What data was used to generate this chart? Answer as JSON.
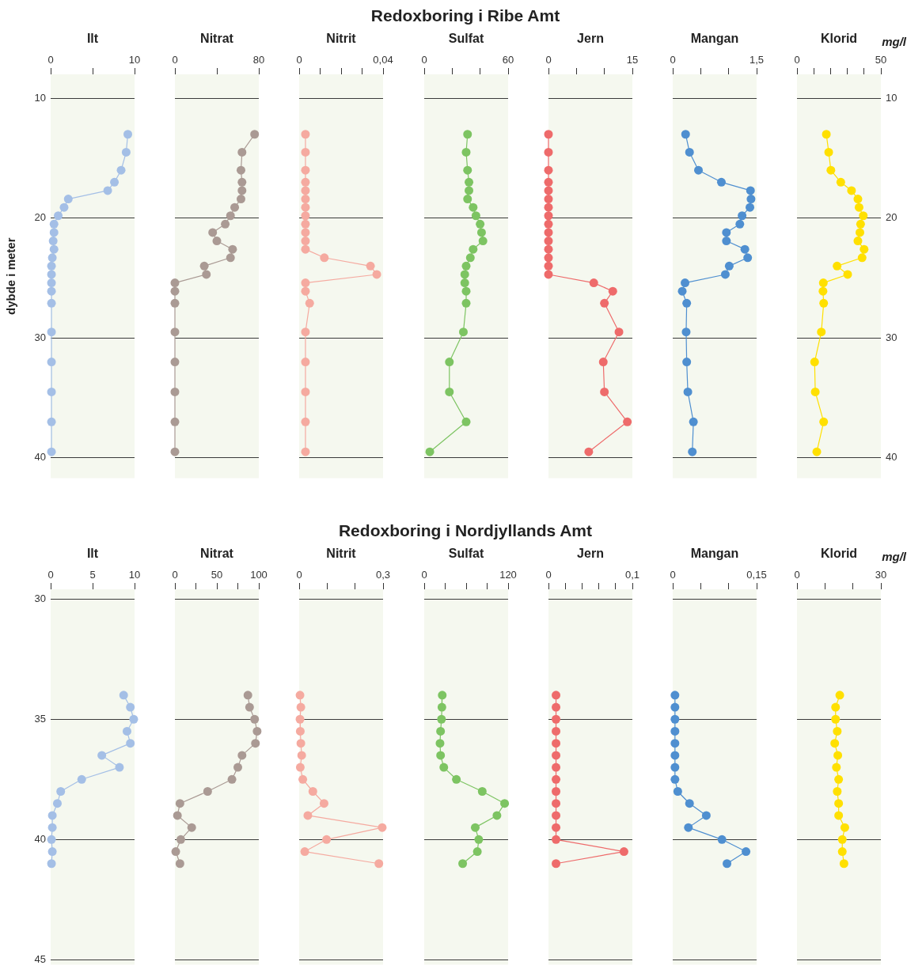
{
  "chart_data": [
    {
      "type": "other",
      "title": "Redoxboring i Ribe Amt"
    },
    {
      "type": "line",
      "xlabel": "Ilt",
      "ylabel": "dybde i meter",
      "grid": "y",
      "marker": "circle",
      "line_style": "solid",
      "xlim": [
        0,
        10
      ],
      "xticks": [
        0,
        {
          "value": 5,
          "label": null
        },
        10
      ],
      "ylim": [
        41.7,
        8
      ],
      "yticks": [
        10,
        20,
        30,
        40
      ],
      "series": [
        {
          "color": "#a4bfe6",
          "x": [
            9.2,
            9.0,
            8.4,
            7.6,
            6.8,
            2.1,
            1.6,
            0.9,
            0.4,
            0.4,
            0.3,
            0.4,
            0.2,
            0.1,
            0.1,
            0.1,
            0.1,
            0.1,
            0.1,
            0.1,
            0.1,
            0.1,
            0.1
          ],
          "values": [
            13.0,
            14.5,
            16.0,
            17.0,
            17.7,
            18.4,
            19.1,
            19.8,
            20.5,
            21.2,
            21.9,
            22.6,
            23.3,
            24.0,
            24.7,
            25.4,
            26.1,
            27.1,
            29.5,
            32.0,
            34.5,
            37.0,
            39.5
          ]
        }
      ]
    },
    {
      "type": "line",
      "xlabel": "Nitrat",
      "grid": "y",
      "marker": "circle",
      "line_style": "solid",
      "tick_labels": "x",
      "xlim": [
        0,
        80
      ],
      "xticks": [
        0,
        {
          "value": 40,
          "label": null
        },
        80
      ],
      "ylim": [
        41.7,
        8
      ],
      "yticks": [
        10,
        20,
        30,
        40
      ],
      "series": [
        {
          "color": "#aa9a94",
          "x": [
            76,
            64,
            63,
            64,
            64,
            63,
            57,
            53,
            48,
            36,
            40,
            55,
            53,
            28,
            30,
            0,
            0,
            0,
            0,
            0,
            0,
            0,
            0
          ],
          "values": [
            13.0,
            14.5,
            16.0,
            17.0,
            17.7,
            18.4,
            19.1,
            19.8,
            20.5,
            21.2,
            21.9,
            22.6,
            23.3,
            24.0,
            24.7,
            25.4,
            26.1,
            27.1,
            29.5,
            32.0,
            34.5,
            37.0,
            39.5
          ]
        }
      ]
    },
    {
      "type": "line",
      "xlabel": "Nitrit",
      "grid": "y",
      "marker": "circle",
      "line_style": "solid",
      "tick_labels": "x",
      "xlim": [
        0,
        0.04
      ],
      "xticks": [
        0,
        {
          "value": 0.01,
          "label": null
        },
        {
          "value": 0.02,
          "label": null
        },
        {
          "value": 0.03,
          "label": null
        },
        {
          "value": 0.04,
          "label": "0,04"
        }
      ],
      "ylim": [
        41.7,
        8
      ],
      "yticks": [
        10,
        20,
        30,
        40
      ],
      "series": [
        {
          "color": "#f5aaa0",
          "x": [
            0.003,
            0.003,
            0.003,
            0.003,
            0.003,
            0.003,
            0.003,
            0.003,
            0.003,
            0.003,
            0.003,
            0.003,
            0.012,
            0.034,
            0.037,
            0.003,
            0.003,
            0.005,
            0.003,
            0.003,
            0.003,
            0.003,
            0.003
          ],
          "values": [
            13.0,
            14.5,
            16.0,
            17.0,
            17.7,
            18.4,
            19.1,
            19.8,
            20.5,
            21.2,
            21.9,
            22.6,
            23.3,
            24.0,
            24.7,
            25.4,
            26.1,
            27.1,
            29.5,
            32.0,
            34.5,
            37.0,
            39.5
          ]
        }
      ]
    },
    {
      "type": "line",
      "xlabel": "Sulfat",
      "grid": "y",
      "marker": "circle",
      "line_style": "solid",
      "tick_labels": "x",
      "xlim": [
        0,
        60
      ],
      "xticks": [
        0,
        {
          "value": 20,
          "label": null
        },
        {
          "value": 40,
          "label": null
        },
        60
      ],
      "ylim": [
        41.7,
        8
      ],
      "yticks": [
        10,
        20,
        30,
        40
      ],
      "series": [
        {
          "color": "#7dc462",
          "x": [
            31,
            30,
            31,
            32,
            32,
            31,
            35,
            37,
            40,
            41,
            42,
            35,
            33,
            30,
            29,
            29,
            30,
            30,
            28,
            18,
            18,
            30,
            4
          ],
          "values": [
            13.0,
            14.5,
            16.0,
            17.0,
            17.7,
            18.4,
            19.1,
            19.8,
            20.5,
            21.2,
            21.9,
            22.6,
            23.3,
            24.0,
            24.7,
            25.4,
            26.1,
            27.1,
            29.5,
            32.0,
            34.5,
            37.0,
            39.5
          ]
        }
      ]
    },
    {
      "type": "line",
      "xlabel": "Jern",
      "grid": "y",
      "marker": "circle",
      "line_style": "solid",
      "tick_labels": "x",
      "xlim": [
        0,
        15
      ],
      "xticks": [
        0,
        {
          "value": 5,
          "label": null
        },
        {
          "value": 10,
          "label": null
        },
        15
      ],
      "ylim": [
        41.7,
        8
      ],
      "yticks": [
        10,
        20,
        30,
        40
      ],
      "series": [
        {
          "color": "#ee6b6b",
          "x": [
            0,
            0,
            0,
            0,
            0,
            0,
            0,
            0,
            0,
            0,
            0,
            0,
            0,
            0,
            0,
            8.1,
            11.5,
            10.0,
            12.6,
            9.8,
            10.0,
            14.1,
            7.2
          ],
          "values": [
            13.0,
            14.5,
            16.0,
            17.0,
            17.7,
            18.4,
            19.1,
            19.8,
            20.5,
            21.2,
            21.9,
            22.6,
            23.3,
            24.0,
            24.7,
            25.4,
            26.1,
            27.1,
            29.5,
            32.0,
            34.5,
            37.0,
            39.5
          ]
        }
      ]
    },
    {
      "type": "line",
      "xlabel": "Mangan",
      "grid": "y",
      "marker": "circle",
      "line_style": "solid",
      "tick_labels": "x",
      "xlim": [
        0,
        1.5
      ],
      "xticks": [
        0,
        {
          "value": 0.5,
          "label": null
        },
        {
          "value": 1,
          "label": null
        },
        {
          "value": 1.5,
          "label": "1,5"
        }
      ],
      "ylim": [
        41.7,
        8
      ],
      "yticks": [
        10,
        20,
        30,
        40
      ],
      "series": [
        {
          "color": "#4f8fd0",
          "x": [
            0.23,
            0.3,
            0.46,
            0.87,
            1.39,
            1.4,
            1.38,
            1.24,
            1.2,
            0.96,
            0.96,
            1.29,
            1.34,
            1.01,
            0.94,
            0.22,
            0.17,
            0.25,
            0.24,
            0.25,
            0.27,
            0.37,
            0.35
          ],
          "values": [
            13.0,
            14.5,
            16.0,
            17.0,
            17.7,
            18.4,
            19.1,
            19.8,
            20.5,
            21.2,
            21.9,
            22.6,
            23.3,
            24.0,
            24.7,
            25.4,
            26.1,
            27.1,
            29.5,
            32.0,
            34.5,
            37.0,
            39.5
          ]
        }
      ]
    },
    {
      "type": "line",
      "xlabel": "Klorid",
      "annotations": [
        "mg/l"
      ],
      "grid": "y",
      "marker": "circle",
      "line_style": "solid",
      "xlim": [
        0,
        50
      ],
      "xticks": [
        0,
        {
          "value": 10,
          "label": null
        },
        {
          "value": 20,
          "label": null
        },
        {
          "value": 30,
          "label": null
        },
        {
          "value": 40,
          "label": null
        },
        50
      ],
      "y2lim": [
        41.7,
        8
      ],
      "y2ticks": [
        10,
        20,
        30,
        40
      ],
      "series": [
        {
          "color": "#ffe000",
          "axis": "y2",
          "x": [
            17.5,
            18.9,
            20.2,
            26.1,
            32.5,
            36.3,
            37.0,
            39.5,
            37.9,
            37.5,
            36.3,
            40.0,
            38.8,
            23.9,
            30.2,
            15.7,
            15.5,
            15.9,
            14.5,
            10.5,
            10.9,
            15.9,
            11.8
          ],
          "values": [
            13.0,
            14.5,
            16.0,
            17.0,
            17.7,
            18.4,
            19.1,
            19.8,
            20.5,
            21.2,
            21.9,
            22.6,
            23.3,
            24.0,
            24.7,
            25.4,
            26.1,
            27.1,
            29.5,
            32.0,
            34.5,
            37.0,
            39.5
          ]
        }
      ]
    },
    {
      "type": "other",
      "title": "Redoxboring i Nordjyllands Amt"
    },
    {
      "type": "line",
      "xlabel": "Ilt",
      "grid": "y",
      "marker": "circle",
      "line_style": "solid",
      "xlim": [
        0,
        10
      ],
      "xticks": [
        0,
        5,
        10
      ],
      "ylim": [
        45.2,
        29.6
      ],
      "yticks": [
        30,
        35,
        40,
        45
      ],
      "series": [
        {
          "color": "#a4bfe6",
          "x": [
            8.7,
            9.5,
            9.9,
            9.1,
            9.5,
            6.1,
            8.2,
            3.7,
            1.2,
            0.8,
            0.2,
            0.2,
            0.1,
            0.2,
            0.1
          ],
          "values": [
            34.0,
            34.5,
            35.0,
            35.5,
            36.0,
            36.5,
            37.0,
            37.5,
            38.0,
            38.5,
            39.0,
            39.5,
            40.0,
            40.5,
            41.0
          ]
        }
      ]
    },
    {
      "type": "line",
      "xlabel": "Nitrat",
      "grid": "y",
      "marker": "circle",
      "line_style": "solid",
      "tick_labels": "x",
      "xlim": [
        0,
        100
      ],
      "xticks": [
        0,
        {
          "value": 25,
          "label": null
        },
        50,
        {
          "value": 75,
          "label": null
        },
        100
      ],
      "ylim": [
        45.2,
        29.6
      ],
      "yticks": [
        30,
        35,
        40,
        45
      ],
      "series": [
        {
          "color": "#aa9a94",
          "x": [
            87,
            89,
            95,
            98,
            96,
            80,
            75,
            68,
            39,
            6,
            3,
            20,
            7,
            1,
            6
          ],
          "values": [
            34.0,
            34.5,
            35.0,
            35.5,
            36.0,
            36.5,
            37.0,
            37.5,
            38.0,
            38.5,
            39.0,
            39.5,
            40.0,
            40.5,
            41.0
          ]
        }
      ]
    },
    {
      "type": "line",
      "xlabel": "Nitrit",
      "grid": "y",
      "marker": "circle",
      "line_style": "solid",
      "tick_labels": "x",
      "xlim": [
        0,
        0.3
      ],
      "xticks": [
        0,
        {
          "value": 0.1,
          "label": null
        },
        {
          "value": 0.2,
          "label": null
        },
        {
          "value": 0.3,
          "label": "0,3"
        }
      ],
      "ylim": [
        45.2,
        29.6
      ],
      "yticks": [
        30,
        35,
        40,
        45
      ],
      "series": [
        {
          "color": "#f5aaa0",
          "x": [
            0.003,
            0.006,
            0.003,
            0.004,
            0.006,
            0.009,
            0.004,
            0.013,
            0.049,
            0.089,
            0.031,
            0.297,
            0.098,
            0.02,
            0.285
          ],
          "values": [
            34.0,
            34.5,
            35.0,
            35.5,
            36.0,
            36.5,
            37.0,
            37.5,
            38.0,
            38.5,
            39.0,
            39.5,
            40.0,
            40.5,
            41.0
          ]
        }
      ]
    },
    {
      "type": "line",
      "xlabel": "Sulfat",
      "grid": "y",
      "marker": "circle",
      "line_style": "solid",
      "tick_labels": "x",
      "xlim": [
        0,
        120
      ],
      "xticks": [
        0,
        {
          "value": 30,
          "label": null
        },
        {
          "value": 60,
          "label": null
        },
        {
          "value": 90,
          "label": null
        },
        120
      ],
      "ylim": [
        45.2,
        29.6
      ],
      "yticks": [
        30,
        35,
        40,
        45
      ],
      "series": [
        {
          "color": "#7dc462",
          "x": [
            25.8,
            25.3,
            24.7,
            23.4,
            22.6,
            23.4,
            28,
            46,
            83,
            115,
            104,
            73,
            78,
            76,
            55
          ],
          "values": [
            34.0,
            34.5,
            35.0,
            35.5,
            36.0,
            36.5,
            37.0,
            37.5,
            38.0,
            38.5,
            39.0,
            39.5,
            40.0,
            40.5,
            41.0
          ]
        }
      ]
    },
    {
      "type": "line",
      "xlabel": "Jern",
      "grid": "y",
      "marker": "circle",
      "line_style": "solid",
      "tick_labels": "x",
      "xlim": [
        0,
        0.1
      ],
      "xticks": [
        0,
        {
          "value": 0.02,
          "label": null
        },
        {
          "value": 0.04,
          "label": null
        },
        {
          "value": 0.06,
          "label": null
        },
        {
          "value": 0.08,
          "label": null
        },
        {
          "value": 0.1,
          "label": "0,1"
        }
      ],
      "ylim": [
        45.2,
        29.6
      ],
      "yticks": [
        30,
        35,
        40,
        45
      ],
      "series": [
        {
          "color": "#ee6b6b",
          "x": [
            0.009,
            0.009,
            0.009,
            0.009,
            0.009,
            0.009,
            0.009,
            0.009,
            0.009,
            0.009,
            0.009,
            0.009,
            0.009,
            0.09,
            0.009
          ],
          "values": [
            34.0,
            34.5,
            35.0,
            35.5,
            36.0,
            36.5,
            37.0,
            37.5,
            38.0,
            38.5,
            39.0,
            39.5,
            40.0,
            40.5,
            41.0
          ]
        }
      ]
    },
    {
      "type": "line",
      "xlabel": "Mangan",
      "grid": "y",
      "marker": "circle",
      "line_style": "solid",
      "tick_labels": "x",
      "xlim": [
        0,
        0.15
      ],
      "xticks": [
        0,
        {
          "value": 0.05,
          "label": null
        },
        {
          "value": 0.1,
          "label": null
        },
        {
          "value": 0.15,
          "label": "0,15"
        }
      ],
      "ylim": [
        45.2,
        29.6
      ],
      "yticks": [
        30,
        35,
        40,
        45
      ],
      "series": [
        {
          "color": "#4f8fd0",
          "x": [
            0.004,
            0.004,
            0.004,
            0.004,
            0.004,
            0.004,
            0.004,
            0.004,
            0.009,
            0.03,
            0.06,
            0.028,
            0.088,
            0.131,
            0.097
          ],
          "values": [
            34.0,
            34.5,
            35.0,
            35.5,
            36.0,
            36.5,
            37.0,
            37.5,
            38.0,
            38.5,
            39.0,
            39.5,
            40.0,
            40.5,
            41.0
          ]
        }
      ]
    },
    {
      "type": "line",
      "xlabel": "Klorid",
      "annotations": [
        "mg/l"
      ],
      "grid": "y",
      "marker": "circle",
      "line_style": "solid",
      "tick_labels": "x",
      "xlim": [
        0,
        30
      ],
      "xticks": [
        0,
        {
          "value": 10,
          "label": null
        },
        {
          "value": 20,
          "label": null
        },
        30
      ],
      "ylim": [
        45.2,
        29.6
      ],
      "yticks": [
        30,
        35,
        40,
        45
      ],
      "series": [
        {
          "color": "#ffe000",
          "x": [
            15.3,
            13.8,
            13.8,
            14.4,
            13.5,
            14.6,
            14.1,
            14.9,
            14.4,
            14.9,
            14.9,
            17.1,
            16.2,
            16.2,
            16.8
          ],
          "values": [
            34.0,
            34.5,
            35.0,
            35.5,
            36.0,
            36.5,
            37.0,
            37.5,
            38.0,
            38.5,
            39.0,
            39.5,
            40.0,
            40.5,
            41.0
          ]
        }
      ]
    }
  ]
}
